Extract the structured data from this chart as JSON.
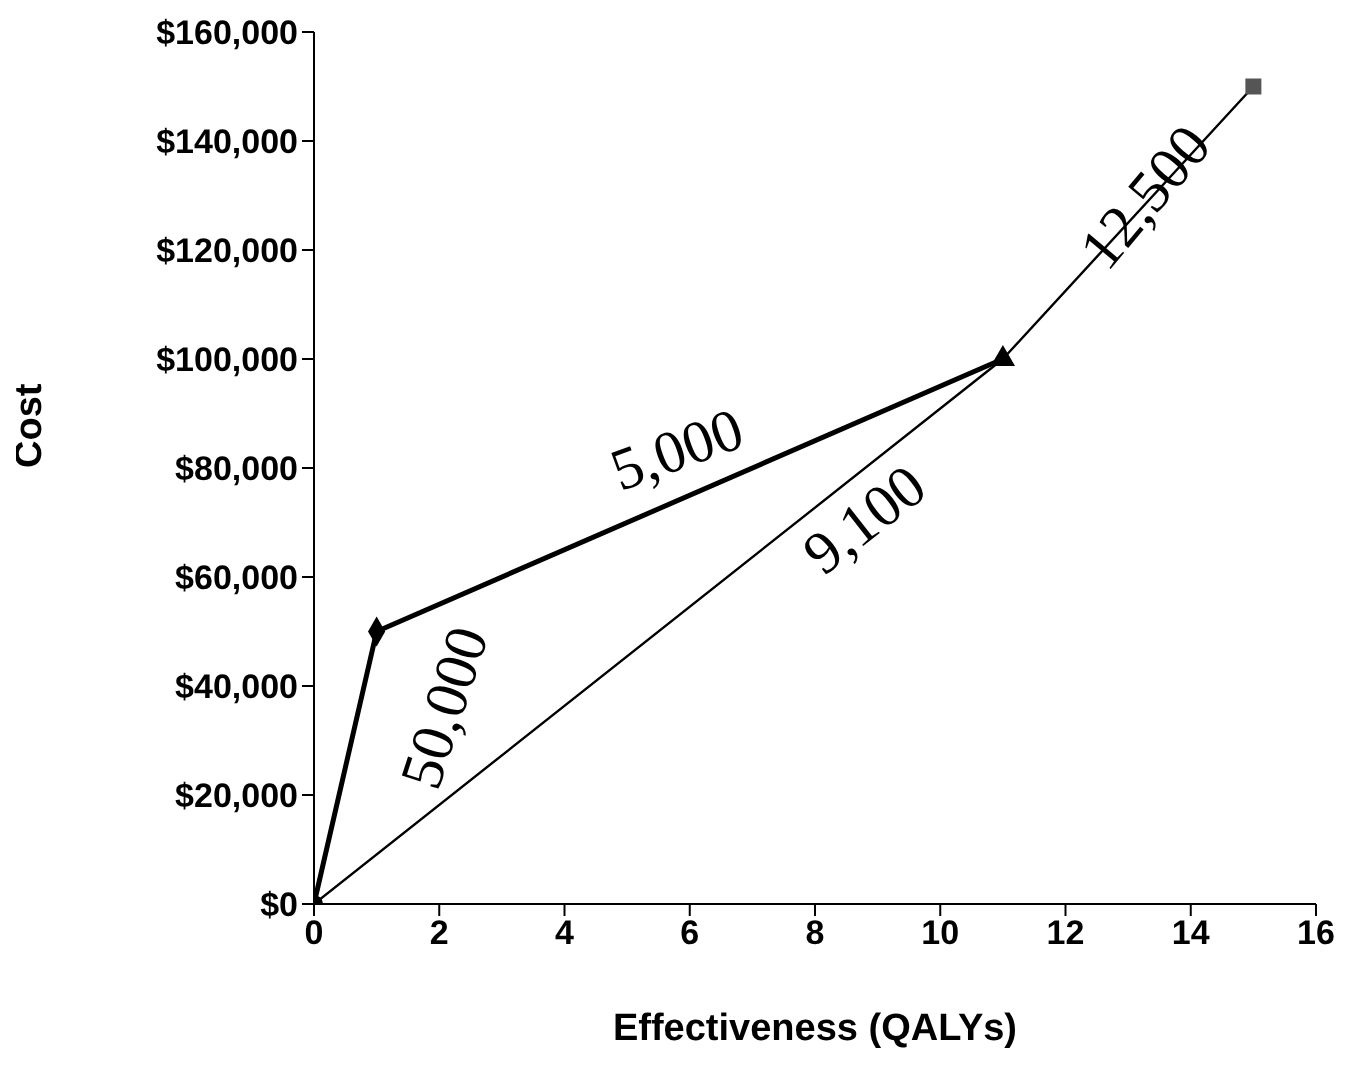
{
  "chart_data": {
    "type": "line",
    "xlabel": "Effectiveness (QALYs)",
    "ylabel": "Cost",
    "xlim": [
      0,
      16
    ],
    "xticks": [
      0,
      2,
      4,
      6,
      8,
      10,
      12,
      14,
      16
    ],
    "ylim": [
      0,
      160000
    ],
    "yticks": [
      {
        "value": 0,
        "label": "$0"
      },
      {
        "value": 20000,
        "label": "$20,000"
      },
      {
        "value": 40000,
        "label": "$40,000"
      },
      {
        "value": 60000,
        "label": "$60,000"
      },
      {
        "value": 80000,
        "label": "$80,000"
      },
      {
        "value": 100000,
        "label": "$100,000"
      },
      {
        "value": 120000,
        "label": "$120,000"
      },
      {
        "value": 140000,
        "label": "$140,000"
      },
      {
        "value": 160000,
        "label": "$160,000"
      }
    ],
    "grid": false,
    "legend": false,
    "series": [
      {
        "color": "#000000",
        "marker": "none",
        "x": [
          0,
          1,
          11
        ],
        "values": [
          0,
          50000,
          100000
        ]
      },
      {
        "color": "#000000",
        "marker": "none",
        "x": [
          0,
          11,
          15
        ],
        "values": [
          0,
          100000,
          150000
        ]
      },
      {
        "type": "scatter",
        "color": "#000000",
        "marker": "circle",
        "x": [
          0
        ],
        "values": [
          0
        ]
      },
      {
        "type": "scatter",
        "color": "#000000",
        "marker": "diamond",
        "x": [
          1
        ],
        "values": [
          50000
        ]
      },
      {
        "type": "scatter",
        "color": "#000000",
        "marker": "triangle",
        "x": [
          11
        ],
        "values": [
          100000
        ]
      },
      {
        "type": "scatter",
        "color": "#555555",
        "marker": "square",
        "x": [
          15
        ],
        "values": [
          150000
        ]
      }
    ],
    "annotations": [
      "50,000",
      "5,000",
      "9,100",
      "12,500"
    ]
  }
}
